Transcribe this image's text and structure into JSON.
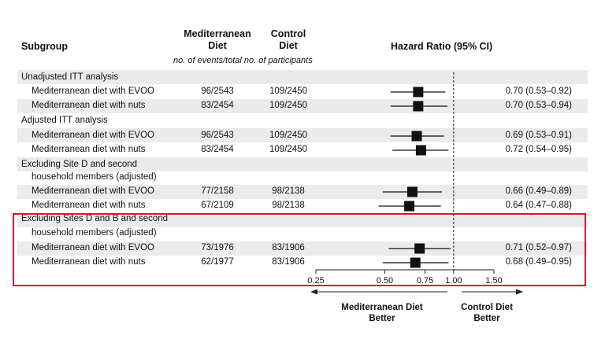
{
  "headers": {
    "subgroup": "Subgroup",
    "med_line1": "Mediterranean",
    "med_line2": "Diet",
    "ctrl_line1": "Control",
    "ctrl_line2": "Diet",
    "hr": "Hazard Ratio (95% CI)",
    "subheader": "no. of events/total no. of participants"
  },
  "groups": [
    {
      "label": "Unadjusted ITT analysis",
      "label2": ""
    },
    {
      "label": "Adjusted ITT analysis",
      "label2": ""
    },
    {
      "label": "Excluding Site D and second",
      "label2": "household members (adjusted)"
    },
    {
      "label": "Excluding Sites D and B and second",
      "label2": "household members (adjusted)"
    }
  ],
  "rows": [
    {
      "label": "Mediterranean diet with EVOO",
      "med": "96/2543",
      "ctrl": "109/2450",
      "ci": "0.70 (0.53–0.92)"
    },
    {
      "label": "Mediterranean diet with nuts",
      "med": "83/2454",
      "ctrl": "109/2450",
      "ci": "0.70 (0.53–0.94)"
    },
    {
      "label": "Mediterranean diet with EVOO",
      "med": "96/2543",
      "ctrl": "109/2450",
      "ci": "0.69 (0.53–0.91)"
    },
    {
      "label": "Mediterranean diet with nuts",
      "med": "83/2454",
      "ctrl": "109/2450",
      "ci": "0.72 (0.54–0.95)"
    },
    {
      "label": "Mediterranean diet with EVOO",
      "med": "77/2158",
      "ctrl": "98/2138",
      "ci": "0.66 (0.49–0.89)"
    },
    {
      "label": "Mediterranean diet with nuts",
      "med": "67/2109",
      "ctrl": "98/2138",
      "ci": "0.64 (0.47–0.88)"
    },
    {
      "label": "Mediterranean diet with EVOO",
      "med": "73/1976",
      "ctrl": "83/1906",
      "ci": "0.71 (0.52–0.97)"
    },
    {
      "label": "Mediterranean diet with nuts",
      "med": "62/1977",
      "ctrl": "83/1906",
      "ci": "0.68 (0.49–0.95)"
    }
  ],
  "arrows": {
    "left_line1": "Mediterranean Diet",
    "left_line2": "Better",
    "right_line1": "Control Diet",
    "right_line2": "Better"
  },
  "colors": {
    "highlight": "#d7192d",
    "band": "#ebebeb",
    "marker": "#111111"
  },
  "chart_data": {
    "type": "forest",
    "title": "",
    "xlabel": "",
    "ylabel": "",
    "x_scale": "log",
    "xlim": [
      0.25,
      1.5
    ],
    "x_ticks": [
      0.25,
      0.5,
      0.75,
      1.0,
      1.5
    ],
    "x_tick_labels": [
      "0.25",
      "0.50",
      "0.75",
      "1.00",
      "1.50"
    ],
    "reference_line": 1.0,
    "points": [
      {
        "hr": 0.7,
        "lo": 0.53,
        "hi": 0.92
      },
      {
        "hr": 0.7,
        "lo": 0.53,
        "hi": 0.94
      },
      {
        "hr": 0.69,
        "lo": 0.53,
        "hi": 0.91
      },
      {
        "hr": 0.72,
        "lo": 0.54,
        "hi": 0.95
      },
      {
        "hr": 0.66,
        "lo": 0.49,
        "hi": 0.89
      },
      {
        "hr": 0.64,
        "lo": 0.47,
        "hi": 0.88
      },
      {
        "hr": 0.71,
        "lo": 0.52,
        "hi": 0.97
      },
      {
        "hr": 0.68,
        "lo": 0.49,
        "hi": 0.95
      }
    ]
  }
}
